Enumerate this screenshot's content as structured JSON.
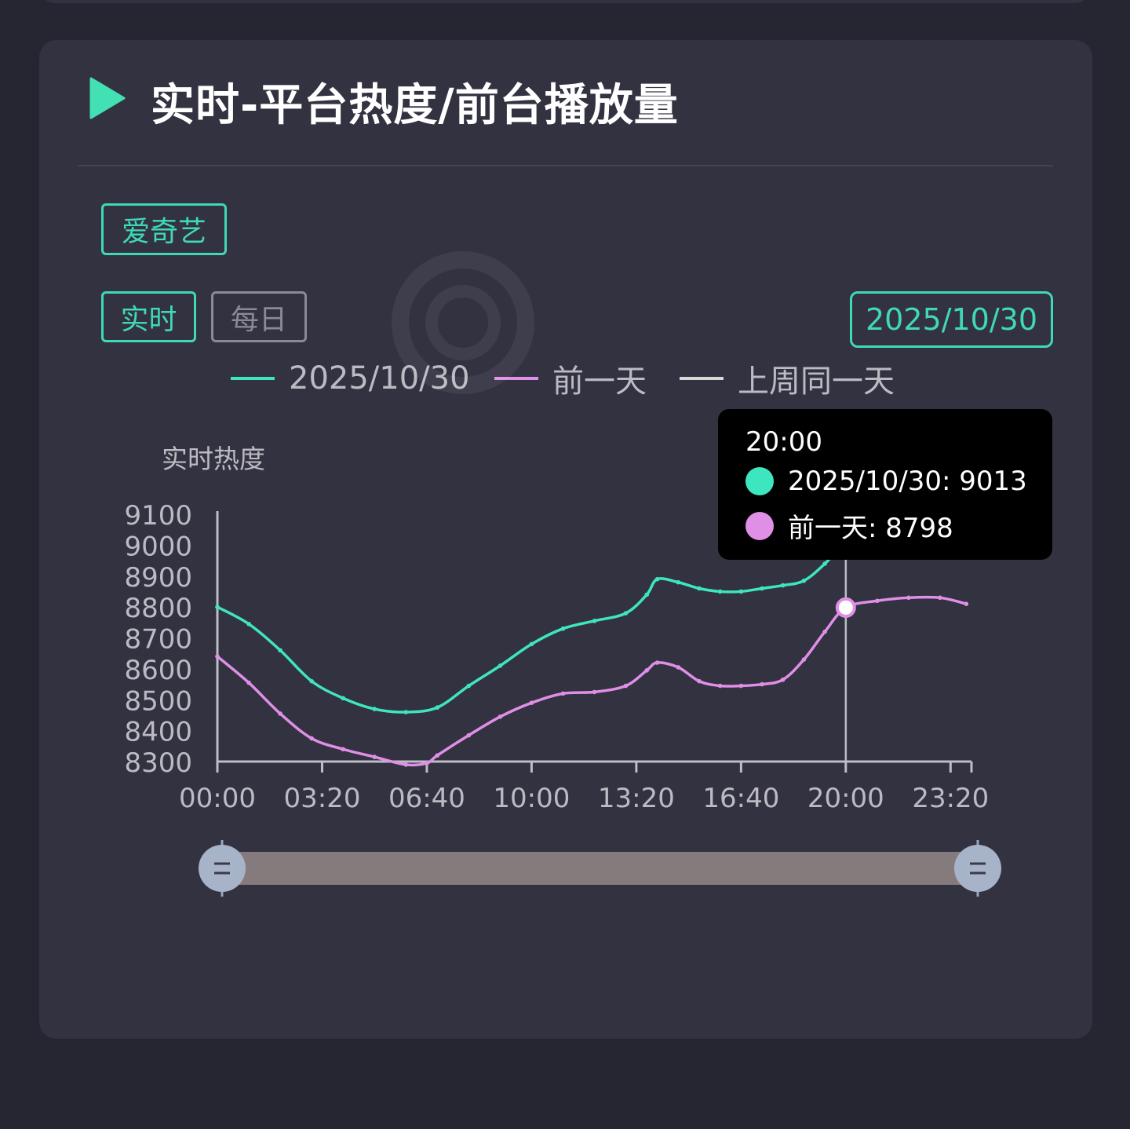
{
  "title": "实时-平台热度/前台播放量",
  "platform_button": "爱奇艺",
  "mode_buttons": {
    "realtime": "实时",
    "daily": "每日"
  },
  "date_button": "2025/10/30",
  "colors": {
    "accent": "#3fd9b8",
    "series_today": "#3ee6c0",
    "series_prev": "#e08fe6",
    "series_week": "#d8d8d8",
    "card_bg": "#333241",
    "page_bg": "#262532"
  },
  "legend": [
    {
      "label": "2025/10/30",
      "color": "#3ee6c0"
    },
    {
      "label": "前一天",
      "color": "#e08fe6"
    },
    {
      "label": "上周同一天",
      "color": "#d8d8d8"
    }
  ],
  "tooltip": {
    "time": "20:00",
    "rows": [
      {
        "label": "2025/10/30: 9013",
        "color": "#3ee6c0"
      },
      {
        "label": "前一天: 8798",
        "color": "#e08fe6"
      }
    ]
  },
  "chart_data": {
    "type": "line",
    "ylabel": "实时热度",
    "ylim": [
      8300,
      9100
    ],
    "yticks": [
      "9100",
      "9000",
      "8900",
      "8800",
      "8700",
      "8600",
      "8500",
      "8400",
      "8300"
    ],
    "xticks": [
      "00:00",
      "03:20",
      "06:40",
      "10:00",
      "13:20",
      "16:40",
      "20:00",
      "23:20"
    ],
    "x_unit_minutes": [
      0,
      200,
      400,
      600,
      800,
      1000,
      1200,
      1400
    ],
    "highlight_x": 1200,
    "series": [
      {
        "name": "2025/10/30",
        "color": "#3ee6c0",
        "x": [
          0,
          60,
          120,
          180,
          240,
          300,
          360,
          420,
          480,
          540,
          600,
          660,
          720,
          780,
          820,
          840,
          880,
          920,
          960,
          1000,
          1040,
          1080,
          1120,
          1160,
          1200
        ],
        "values": [
          8800,
          8745,
          8660,
          8560,
          8505,
          8470,
          8460,
          8475,
          8545,
          8610,
          8680,
          8730,
          8755,
          8780,
          8840,
          8890,
          8880,
          8860,
          8850,
          8850,
          8860,
          8870,
          8885,
          8940,
          9013
        ]
      },
      {
        "name": "前一天",
        "color": "#e08fe6",
        "x": [
          0,
          60,
          120,
          180,
          240,
          300,
          360,
          400,
          420,
          480,
          540,
          600,
          660,
          720,
          780,
          820,
          840,
          880,
          920,
          960,
          1000,
          1040,
          1080,
          1120,
          1160,
          1200,
          1260,
          1320,
          1380,
          1430
        ],
        "values": [
          8640,
          8555,
          8455,
          8375,
          8340,
          8315,
          8290,
          8295,
          8320,
          8385,
          8445,
          8490,
          8520,
          8525,
          8545,
          8595,
          8620,
          8605,
          8560,
          8545,
          8545,
          8550,
          8565,
          8630,
          8720,
          8798,
          8820,
          8830,
          8830,
          8810
        ]
      }
    ]
  }
}
